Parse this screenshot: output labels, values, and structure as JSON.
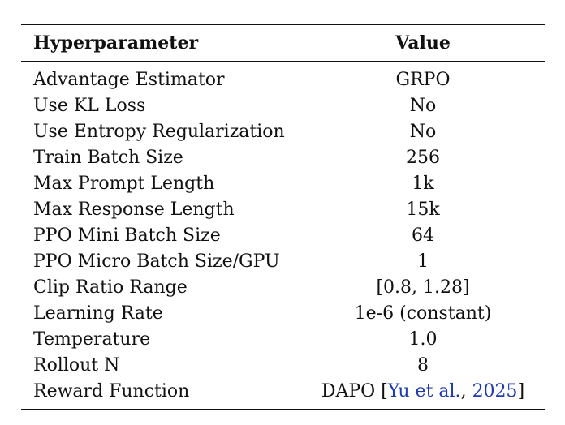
{
  "table": {
    "headers": {
      "param": "Hyperparameter",
      "value": "Value"
    },
    "rows": [
      {
        "param": "Advantage Estimator",
        "value": "GRPO"
      },
      {
        "param": "Use KL Loss",
        "value": "No"
      },
      {
        "param": "Use Entropy Regularization",
        "value": "No"
      },
      {
        "param": "Train Batch Size",
        "value": "256"
      },
      {
        "param": "Max Prompt Length",
        "value": "1k"
      },
      {
        "param": "Max Response Length",
        "value": "15k"
      },
      {
        "param": "PPO Mini Batch Size",
        "value": "64"
      },
      {
        "param": "PPO Micro Batch Size/GPU",
        "value": "1"
      },
      {
        "param": "Clip Ratio Range",
        "value": "[0.8, 1.28]"
      },
      {
        "param": "Learning Rate",
        "value": "1e-6 (constant)"
      },
      {
        "param": "Temperature",
        "value": "1.0"
      },
      {
        "param": "Rollout N",
        "value": "8"
      }
    ],
    "last_row": {
      "param": "Reward Function",
      "value_prefix": "DAPO ",
      "open_bracket": "[",
      "cite_authors": "Yu et al.",
      "cite_sep": ", ",
      "cite_year": "2025",
      "close_bracket": "]"
    },
    "cite_color": "#1f3bb3"
  }
}
